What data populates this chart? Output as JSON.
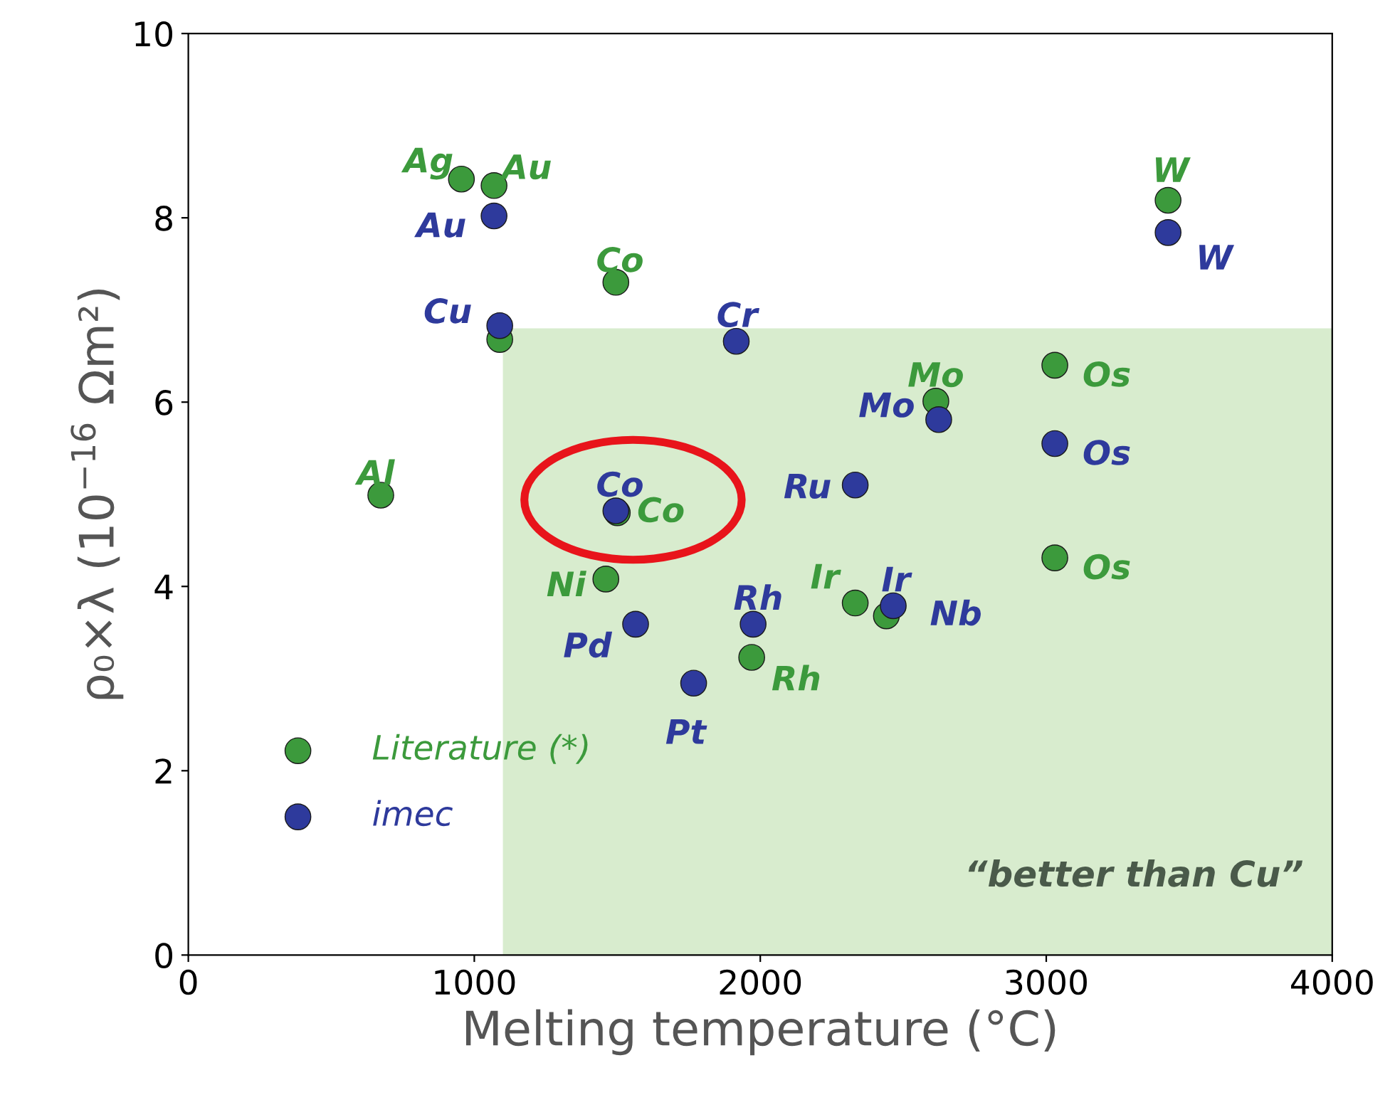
{
  "chart_data": {
    "type": "scatter",
    "xlabel": "Melting temperature (°C)",
    "ylabel": "ρ₀×λ (10$^{−16}$ Ωm²)",
    "xlim": [
      0,
      4000
    ],
    "xticks": [
      0,
      1000,
      2000,
      3000,
      4000
    ],
    "ylim": [
      0,
      10
    ],
    "yticks": [
      0,
      2,
      4,
      6,
      8,
      10
    ],
    "grid": false,
    "legend": "bottom left",
    "marker": "circle",
    "bands": [
      {
        "axis": "x",
        "from": 1100,
        "to": 4000,
        "label": "“better than Cu”",
        "color": "#d8ecce"
      }
    ],
    "series": [
      {
        "name": "Literature (*)",
        "color": "#3c9a3c",
        "x": [
          955,
          1069,
          1495,
          1089,
          673,
          1460,
          1970,
          2332,
          2441,
          2614,
          3030,
          3030,
          3426,
          1500
        ],
        "values": [
          8.42,
          8.35,
          7.3,
          6.68,
          4.99,
          4.08,
          3.23,
          3.82,
          3.68,
          6.01,
          6.4,
          4.31,
          8.19,
          4.8
        ],
        "value_labels": [
          "Ag",
          "Au",
          "Co",
          null,
          "Al",
          "Ni",
          "Rh",
          "Ir",
          null,
          "Mo",
          "Os",
          "Os",
          "W",
          "Co"
        ]
      },
      {
        "name": "imec",
        "color": "#2e3a9c",
        "x": [
          1069,
          1089,
          1916,
          1495,
          1564,
          1767,
          1975,
          2332,
          2624,
          2465,
          3030,
          3426
        ],
        "values": [
          8.02,
          6.83,
          6.66,
          4.82,
          3.59,
          2.95,
          3.59,
          5.1,
          5.81,
          3.79,
          5.55,
          7.84
        ],
        "value_labels": [
          "Au",
          "Cu",
          "Cr",
          "Co",
          "Pd",
          "Pt",
          "Rh",
          "Ru",
          "Mo",
          "Ir",
          "Os",
          "W"
        ]
      }
    ],
    "annotations": [
      {
        "text": "Nb",
        "x": 2441,
        "y": 3.68
      }
    ]
  }
}
